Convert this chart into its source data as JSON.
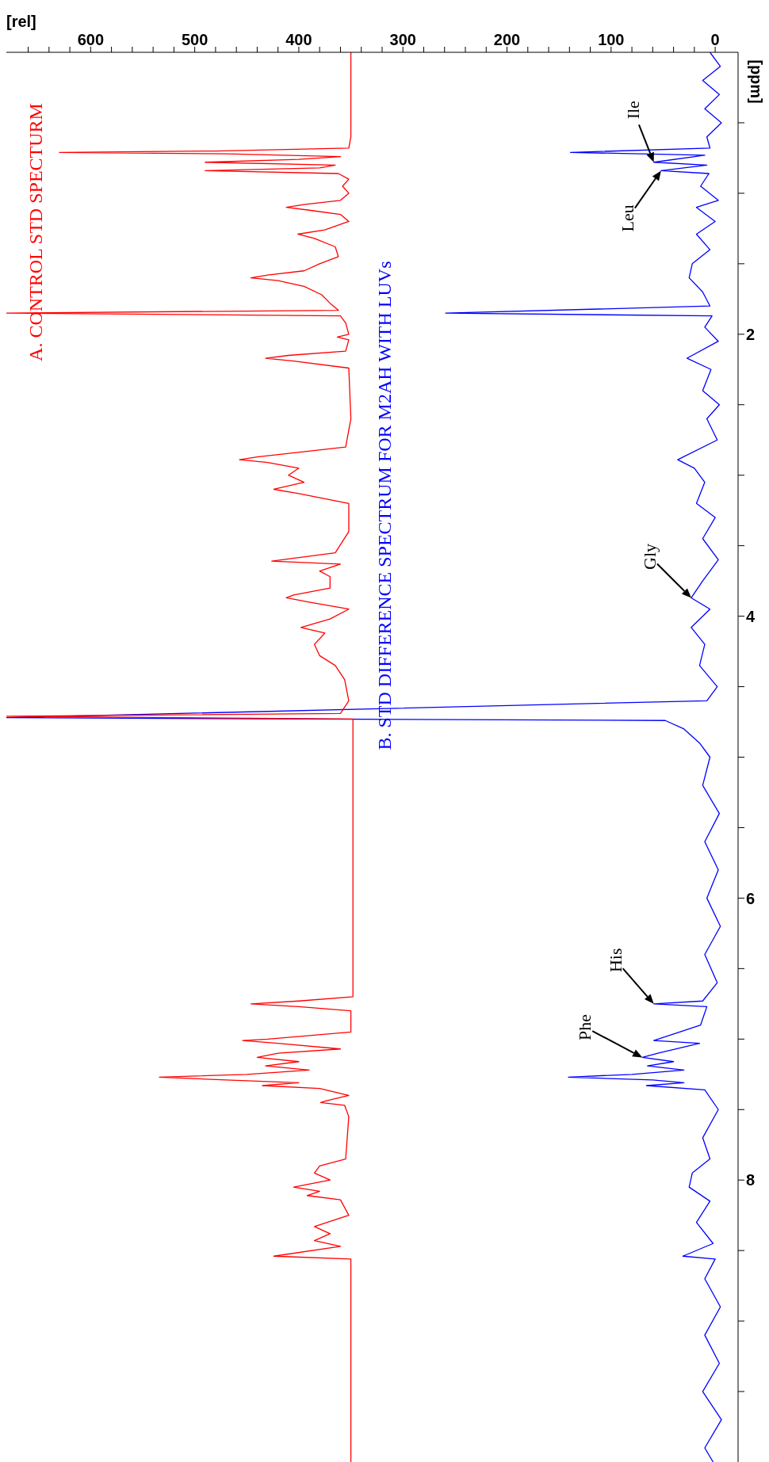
{
  "chart_data": {
    "type": "line",
    "xlabel": "[rel]",
    "ylabel": "[ppm]",
    "xlim": [
      681,
      -22
    ],
    "ylim": [
      10,
      0
    ],
    "xticks": [
      0,
      {
        "value": 20,
        "label": null
      },
      {
        "value": 40,
        "label": null
      },
      {
        "value": 60,
        "label": null
      },
      {
        "value": 80,
        "label": null
      },
      100,
      {
        "value": 120,
        "label": null
      },
      {
        "value": 140,
        "label": null
      },
      {
        "value": 160,
        "label": null
      },
      {
        "value": 180,
        "label": null
      },
      200,
      {
        "value": 220,
        "label": null
      },
      {
        "value": 240,
        "label": null
      },
      {
        "value": 260,
        "label": null
      },
      {
        "value": 280,
        "label": null
      },
      300,
      {
        "value": 320,
        "label": null
      },
      {
        "value": 340,
        "label": null
      },
      {
        "value": 360,
        "label": null
      },
      {
        "value": 380,
        "label": null
      },
      400,
      {
        "value": 420,
        "label": null
      },
      {
        "value": 440,
        "label": null
      },
      {
        "value": 460,
        "label": null
      },
      {
        "value": 480,
        "label": null
      },
      500,
      {
        "value": 520,
        "label": null
      },
      {
        "value": 540,
        "label": null
      },
      {
        "value": 560,
        "label": null
      },
      {
        "value": 580,
        "label": null
      },
      600,
      {
        "value": 620,
        "label": null
      },
      {
        "value": 640,
        "label": null
      },
      {
        "value": 660,
        "label": null
      }
    ],
    "yticks": [
      {
        "value": 0.5,
        "label": null
      },
      {
        "value": 1,
        "label": null
      },
      {
        "value": 1.5,
        "label": null
      },
      2,
      {
        "value": 2.5,
        "label": null
      },
      {
        "value": 3,
        "label": null
      },
      {
        "value": 3.5,
        "label": null
      },
      4,
      {
        "value": 4.5,
        "label": null
      },
      {
        "value": 5,
        "label": null
      },
      {
        "value": 5.5,
        "label": null
      },
      6,
      {
        "value": 6.5,
        "label": null
      },
      {
        "value": 7,
        "label": null
      },
      {
        "value": 7.5,
        "label": null
      },
      8,
      {
        "value": 8.5,
        "label": null
      },
      {
        "value": 9,
        "label": null
      },
      {
        "value": 9.5,
        "label": null
      }
    ],
    "marker": "none",
    "line_style": "solid",
    "series": [
      {
        "name": "B. STD DIFFERENCE SPECTRUM FOR M2AH WITH LUVs",
        "color": "#0000ff",
        "values": [
          0.0,
          0.1,
          0.2,
          0.3,
          0.4,
          0.5,
          0.6,
          0.68,
          0.71,
          0.73,
          0.78,
          0.8,
          0.84,
          0.86,
          0.95,
          1.05,
          1.1,
          1.2,
          1.29,
          1.4,
          1.5,
          1.6,
          1.7,
          1.8,
          1.85,
          1.87,
          1.95,
          2.05,
          2.17,
          2.25,
          2.4,
          2.5,
          2.6,
          2.75,
          2.89,
          2.95,
          3.05,
          3.2,
          3.3,
          3.45,
          3.6,
          3.75,
          3.87,
          3.95,
          4.08,
          4.2,
          4.35,
          4.5,
          4.6,
          4.72,
          4.74,
          4.8,
          4.9,
          5.0,
          5.2,
          5.4,
          5.6,
          5.8,
          6.0,
          6.2,
          6.4,
          6.6,
          6.73,
          6.75,
          6.77,
          6.9,
          7.01,
          7.03,
          7.1,
          7.13,
          7.16,
          7.19,
          7.22,
          7.25,
          7.27,
          7.29,
          7.31,
          7.33,
          7.36,
          7.5,
          7.7,
          7.85,
          7.95,
          8.05,
          8.15,
          8.3,
          8.45,
          8.54,
          8.56,
          8.7,
          8.9,
          9.1,
          9.3,
          9.5,
          9.7,
          9.9,
          10.0
        ],
        "x": [
          5,
          -5,
          12,
          -4,
          10,
          -6,
          8,
          5,
          139,
          10,
          59,
          8,
          52,
          6,
          14,
          -3,
          18,
          0,
          18,
          5,
          22,
          25,
          12,
          5,
          259,
          3,
          10,
          -3,
          27,
          4,
          12,
          -4,
          8,
          -2,
          36,
          20,
          10,
          18,
          0,
          12,
          -3,
          12,
          23,
          5,
          23,
          10,
          15,
          -2,
          8,
          681,
          48,
          30,
          15,
          5,
          12,
          -4,
          10,
          -3,
          8,
          -5,
          10,
          -2,
          12,
          59,
          8,
          14,
          59,
          15,
          55,
          70,
          40,
          65,
          30,
          80,
          141,
          60,
          30,
          66,
          10,
          -3,
          12,
          5,
          22,
          25,
          5,
          18,
          2,
          31,
          0,
          10,
          -5,
          10,
          -4,
          12,
          -6,
          10,
          2
        ]
      },
      {
        "name": "A. CONTROL STD SPECTURM",
        "color": "#ff0000",
        "values": [
          0.0,
          0.6,
          0.68,
          0.7,
          0.71,
          0.72,
          0.74,
          0.76,
          0.78,
          0.8,
          0.82,
          0.84,
          0.86,
          0.9,
          0.95,
          1.0,
          1.05,
          1.08,
          1.1,
          1.12,
          1.15,
          1.2,
          1.26,
          1.29,
          1.32,
          1.38,
          1.45,
          1.5,
          1.55,
          1.58,
          1.6,
          1.62,
          1.66,
          1.72,
          1.78,
          1.83,
          1.85,
          1.87,
          1.92,
          2.0,
          2.02,
          2.04,
          2.12,
          2.15,
          2.17,
          2.19,
          2.24,
          2.6,
          2.8,
          2.87,
          2.89,
          2.91,
          2.95,
          3.0,
          3.05,
          3.1,
          3.13,
          3.2,
          3.4,
          3.55,
          3.61,
          3.63,
          3.68,
          3.72,
          3.8,
          3.85,
          3.87,
          3.9,
          3.95,
          4.02,
          4.08,
          4.12,
          4.2,
          4.28,
          4.35,
          4.45,
          4.6,
          4.69,
          4.71,
          4.73,
          5.0,
          6.0,
          6.7,
          6.73,
          6.75,
          6.77,
          6.8,
          6.95,
          7.0,
          7.01,
          7.03,
          7.07,
          7.1,
          7.13,
          7.16,
          7.19,
          7.22,
          7.25,
          7.27,
          7.29,
          7.31,
          7.33,
          7.35,
          7.4,
          7.44,
          7.45,
          7.47,
          7.55,
          7.85,
          7.9,
          7.95,
          8.0,
          8.05,
          8.08,
          8.11,
          8.14,
          8.25,
          8.33,
          8.38,
          8.43,
          8.47,
          8.54,
          8.56,
          9.0,
          10.0
        ],
        "x": [
          350,
          350,
          352,
          480,
          630,
          470,
          360,
          400,
          490,
          365,
          380,
          490,
          362,
          352,
          358,
          352,
          360,
          395,
          412,
          390,
          360,
          352,
          375,
          401,
          385,
          365,
          362,
          380,
          395,
          430,
          446,
          420,
          395,
          378,
          370,
          362,
          681,
          360,
          355,
          352,
          363,
          352,
          355,
          410,
          432,
          405,
          352,
          350,
          355,
          440,
          457,
          430,
          400,
          410,
          395,
          424,
          400,
          352,
          352,
          365,
          426,
          360,
          380,
          370,
          370,
          405,
          412,
          390,
          352,
          370,
          398,
          375,
          385,
          380,
          365,
          356,
          352,
          360,
          681,
          348,
          348,
          348,
          348,
          400,
          446,
          400,
          350,
          350,
          430,
          454,
          420,
          360,
          420,
          440,
          400,
          432,
          390,
          450,
          534,
          470,
          400,
          435,
          380,
          352,
          375,
          379,
          356,
          352,
          355,
          380,
          385,
          370,
          405,
          380,
          392,
          360,
          352,
          385,
          370,
          385,
          360,
          424,
          350,
          350,
          350
        ]
      }
    ],
    "annotations": [
      {
        "text": "Ile",
        "x": 59,
        "y": 0.78
      },
      {
        "text": "Leu",
        "x": 52,
        "y": 0.84
      },
      {
        "text": "Gly",
        "x": 23,
        "y": 3.87
      },
      {
        "text": "His",
        "x": 59,
        "y": 6.75
      },
      {
        "text": "Phe",
        "x": 70,
        "y": 7.13
      }
    ]
  }
}
